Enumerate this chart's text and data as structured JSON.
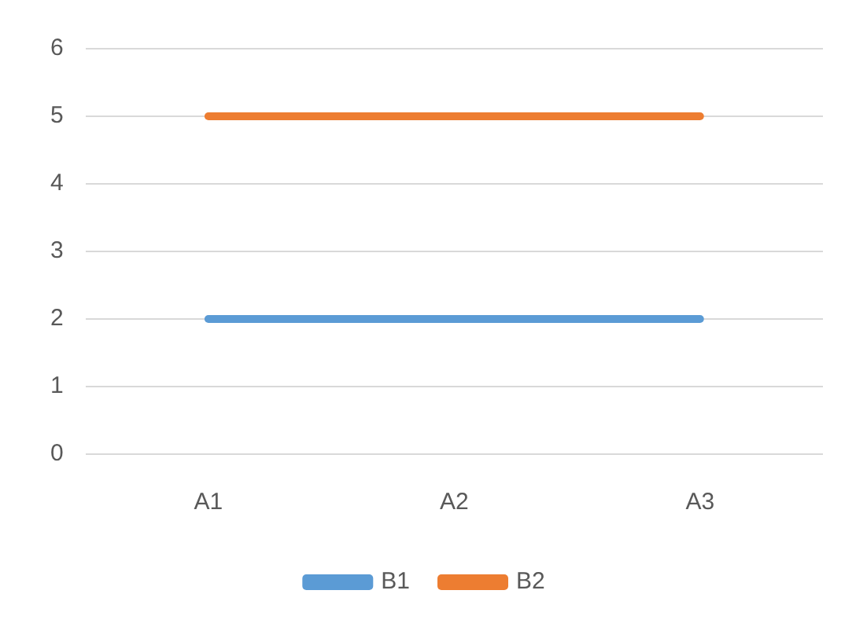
{
  "chart_data": {
    "type": "line",
    "categories": [
      "A1",
      "A2",
      "A3"
    ],
    "series": [
      {
        "name": "B1",
        "color": "#5b9bd5",
        "values": [
          2,
          2,
          2
        ]
      },
      {
        "name": "B2",
        "color": "#ed7d31",
        "values": [
          5,
          5,
          5
        ]
      }
    ],
    "ylim": [
      0,
      6
    ],
    "yticks": [
      0,
      1,
      2,
      3,
      4,
      5,
      6
    ],
    "grid": "y",
    "legend": "bottom",
    "marker": "none",
    "line_style": "solid"
  }
}
